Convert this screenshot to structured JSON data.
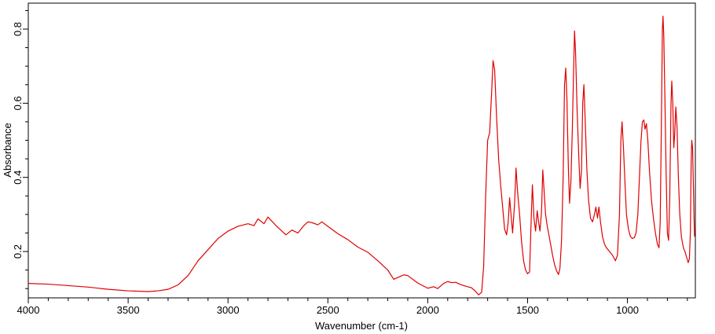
{
  "chart_data": {
    "type": "line",
    "title": "",
    "xlabel": "Wavenumber (cm-1)",
    "ylabel": "Absorbance",
    "xlim": [
      4000,
      660
    ],
    "ylim": [
      0.075,
      0.87
    ],
    "x_reversed": true,
    "grid": false,
    "legend": "none",
    "x_ticks": [
      {
        "value": 4000,
        "label": "4000"
      },
      {
        "value": 3500,
        "label": "3500"
      },
      {
        "value": 3000,
        "label": "3000"
      },
      {
        "value": 2500,
        "label": "2500"
      },
      {
        "value": 2000,
        "label": "2000"
      },
      {
        "value": 1500,
        "label": "1500"
      },
      {
        "value": 1000,
        "label": "1000"
      }
    ],
    "y_ticks": [
      {
        "value": 0.2,
        "label": "0.2"
      },
      {
        "value": 0.4,
        "label": "0.4"
      },
      {
        "value": 0.6,
        "label": "0.6"
      },
      {
        "value": 0.8,
        "label": "0.8"
      }
    ],
    "series": [
      {
        "color": "#e00000",
        "points": [
          [
            4000,
            0.114
          ],
          [
            3900,
            0.112
          ],
          [
            3800,
            0.108
          ],
          [
            3700,
            0.104
          ],
          [
            3600,
            0.098
          ],
          [
            3500,
            0.094
          ],
          [
            3400,
            0.092
          ],
          [
            3350,
            0.094
          ],
          [
            3300,
            0.098
          ],
          [
            3250,
            0.11
          ],
          [
            3200,
            0.135
          ],
          [
            3150,
            0.175
          ],
          [
            3100,
            0.205
          ],
          [
            3050,
            0.235
          ],
          [
            3000,
            0.255
          ],
          [
            2950,
            0.268
          ],
          [
            2900,
            0.275
          ],
          [
            2870,
            0.27
          ],
          [
            2850,
            0.288
          ],
          [
            2820,
            0.275
          ],
          [
            2800,
            0.293
          ],
          [
            2760,
            0.27
          ],
          [
            2740,
            0.26
          ],
          [
            2710,
            0.245
          ],
          [
            2680,
            0.258
          ],
          [
            2650,
            0.25
          ],
          [
            2620,
            0.27
          ],
          [
            2600,
            0.28
          ],
          [
            2580,
            0.278
          ],
          [
            2550,
            0.272
          ],
          [
            2530,
            0.28
          ],
          [
            2500,
            0.268
          ],
          [
            2450,
            0.248
          ],
          [
            2400,
            0.232
          ],
          [
            2350,
            0.212
          ],
          [
            2300,
            0.198
          ],
          [
            2250,
            0.175
          ],
          [
            2200,
            0.15
          ],
          [
            2170,
            0.125
          ],
          [
            2150,
            0.13
          ],
          [
            2120,
            0.137
          ],
          [
            2100,
            0.135
          ],
          [
            2050,
            0.115
          ],
          [
            2000,
            0.101
          ],
          [
            1970,
            0.105
          ],
          [
            1950,
            0.1
          ],
          [
            1920,
            0.114
          ],
          [
            1900,
            0.119
          ],
          [
            1880,
            0.116
          ],
          [
            1860,
            0.117
          ],
          [
            1840,
            0.112
          ],
          [
            1820,
            0.108
          ],
          [
            1800,
            0.105
          ],
          [
            1780,
            0.102
          ],
          [
            1760,
            0.092
          ],
          [
            1745,
            0.083
          ],
          [
            1730,
            0.09
          ],
          [
            1720,
            0.16
          ],
          [
            1710,
            0.35
          ],
          [
            1700,
            0.5
          ],
          [
            1690,
            0.52
          ],
          [
            1680,
            0.63
          ],
          [
            1673,
            0.715
          ],
          [
            1665,
            0.69
          ],
          [
            1655,
            0.56
          ],
          [
            1645,
            0.45
          ],
          [
            1635,
            0.38
          ],
          [
            1625,
            0.32
          ],
          [
            1615,
            0.26
          ],
          [
            1605,
            0.245
          ],
          [
            1597,
            0.28
          ],
          [
            1590,
            0.345
          ],
          [
            1583,
            0.3
          ],
          [
            1575,
            0.25
          ],
          [
            1565,
            0.33
          ],
          [
            1558,
            0.425
          ],
          [
            1550,
            0.36
          ],
          [
            1540,
            0.3
          ],
          [
            1530,
            0.225
          ],
          [
            1520,
            0.175
          ],
          [
            1510,
            0.15
          ],
          [
            1500,
            0.14
          ],
          [
            1490,
            0.145
          ],
          [
            1483,
            0.27
          ],
          [
            1476,
            0.38
          ],
          [
            1468,
            0.29
          ],
          [
            1460,
            0.255
          ],
          [
            1452,
            0.31
          ],
          [
            1445,
            0.28
          ],
          [
            1438,
            0.255
          ],
          [
            1430,
            0.31
          ],
          [
            1424,
            0.42
          ],
          [
            1418,
            0.37
          ],
          [
            1410,
            0.3
          ],
          [
            1402,
            0.27
          ],
          [
            1395,
            0.25
          ],
          [
            1385,
            0.22
          ],
          [
            1375,
            0.19
          ],
          [
            1365,
            0.165
          ],
          [
            1355,
            0.148
          ],
          [
            1345,
            0.138
          ],
          [
            1338,
            0.155
          ],
          [
            1330,
            0.23
          ],
          [
            1322,
            0.4
          ],
          [
            1315,
            0.65
          ],
          [
            1309,
            0.695
          ],
          [
            1303,
            0.61
          ],
          [
            1296,
            0.43
          ],
          [
            1290,
            0.33
          ],
          [
            1283,
            0.39
          ],
          [
            1276,
            0.53
          ],
          [
            1270,
            0.68
          ],
          [
            1265,
            0.795
          ],
          [
            1260,
            0.74
          ],
          [
            1252,
            0.58
          ],
          [
            1244,
            0.46
          ],
          [
            1237,
            0.37
          ],
          [
            1230,
            0.42
          ],
          [
            1224,
            0.6
          ],
          [
            1218,
            0.65
          ],
          [
            1212,
            0.56
          ],
          [
            1203,
            0.42
          ],
          [
            1195,
            0.34
          ],
          [
            1185,
            0.29
          ],
          [
            1175,
            0.28
          ],
          [
            1165,
            0.3
          ],
          [
            1158,
            0.32
          ],
          [
            1150,
            0.29
          ],
          [
            1143,
            0.32
          ],
          [
            1135,
            0.28
          ],
          [
            1125,
            0.24
          ],
          [
            1115,
            0.22
          ],
          [
            1105,
            0.21
          ],
          [
            1090,
            0.2
          ],
          [
            1075,
            0.19
          ],
          [
            1060,
            0.175
          ],
          [
            1050,
            0.19
          ],
          [
            1040,
            0.3
          ],
          [
            1033,
            0.5
          ],
          [
            1027,
            0.55
          ],
          [
            1020,
            0.48
          ],
          [
            1012,
            0.38
          ],
          [
            1005,
            0.3
          ],
          [
            995,
            0.26
          ],
          [
            985,
            0.24
          ],
          [
            975,
            0.235
          ],
          [
            965,
            0.238
          ],
          [
            957,
            0.25
          ],
          [
            948,
            0.3
          ],
          [
            940,
            0.4
          ],
          [
            932,
            0.5
          ],
          [
            925,
            0.55
          ],
          [
            918,
            0.555
          ],
          [
            912,
            0.53
          ],
          [
            905,
            0.545
          ],
          [
            898,
            0.5
          ],
          [
            890,
            0.42
          ],
          [
            880,
            0.34
          ],
          [
            870,
            0.29
          ],
          [
            860,
            0.25
          ],
          [
            850,
            0.22
          ],
          [
            842,
            0.21
          ],
          [
            836,
            0.28
          ],
          [
            830,
            0.55
          ],
          [
            825,
            0.8
          ],
          [
            822,
            0.835
          ],
          [
            818,
            0.78
          ],
          [
            812,
            0.6
          ],
          [
            806,
            0.4
          ],
          [
            800,
            0.25
          ],
          [
            794,
            0.23
          ],
          [
            788,
            0.35
          ],
          [
            782,
            0.6
          ],
          [
            778,
            0.66
          ],
          [
            773,
            0.6
          ],
          [
            768,
            0.48
          ],
          [
            763,
            0.52
          ],
          [
            758,
            0.59
          ],
          [
            752,
            0.54
          ],
          [
            745,
            0.4
          ],
          [
            738,
            0.3
          ],
          [
            730,
            0.24
          ],
          [
            720,
            0.21
          ],
          [
            712,
            0.2
          ],
          [
            704,
            0.185
          ],
          [
            696,
            0.17
          ],
          [
            690,
            0.18
          ],
          [
            685,
            0.25
          ],
          [
            681,
            0.44
          ],
          [
            678,
            0.5
          ],
          [
            674,
            0.48
          ],
          [
            670,
            0.38
          ],
          [
            667,
            0.3
          ],
          [
            664,
            0.24
          ]
        ]
      }
    ]
  }
}
